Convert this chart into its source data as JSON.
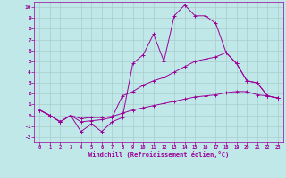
{
  "background_color": "#c0e8e8",
  "grid_color": "#a8cccc",
  "line_color": "#990099",
  "xlim": [
    -0.5,
    23.5
  ],
  "ylim": [
    -2.5,
    10.5
  ],
  "xticks": [
    0,
    1,
    2,
    3,
    4,
    5,
    6,
    7,
    8,
    9,
    10,
    11,
    12,
    13,
    14,
    15,
    16,
    17,
    18,
    19,
    20,
    21,
    22,
    23
  ],
  "yticks": [
    -2,
    -1,
    0,
    1,
    2,
    3,
    4,
    5,
    6,
    7,
    8,
    9,
    10
  ],
  "xlabel": "Windchill (Refroidissement éolien,°C)",
  "series1": [
    0.5,
    0.0,
    -0.6,
    0.0,
    -1.5,
    -0.8,
    -1.5,
    -0.6,
    -0.2,
    4.8,
    5.6,
    7.5,
    5.0,
    9.2,
    10.2,
    9.2,
    9.2,
    8.5,
    5.8,
    4.8,
    3.2,
    3.0,
    1.8,
    1.6
  ],
  "series2": [
    0.5,
    0.0,
    -0.6,
    0.0,
    -0.6,
    -0.5,
    -0.4,
    -0.2,
    1.8,
    2.2,
    2.8,
    3.2,
    3.5,
    4.0,
    4.5,
    5.0,
    5.2,
    5.4,
    5.8,
    4.8,
    3.2,
    3.0,
    1.8,
    1.6
  ],
  "series3": [
    0.5,
    0.0,
    -0.6,
    0.0,
    -0.3,
    -0.2,
    -0.2,
    -0.1,
    0.2,
    0.5,
    0.7,
    0.9,
    1.1,
    1.3,
    1.5,
    1.7,
    1.8,
    1.9,
    2.1,
    2.2,
    2.2,
    1.9,
    1.8,
    1.6
  ]
}
